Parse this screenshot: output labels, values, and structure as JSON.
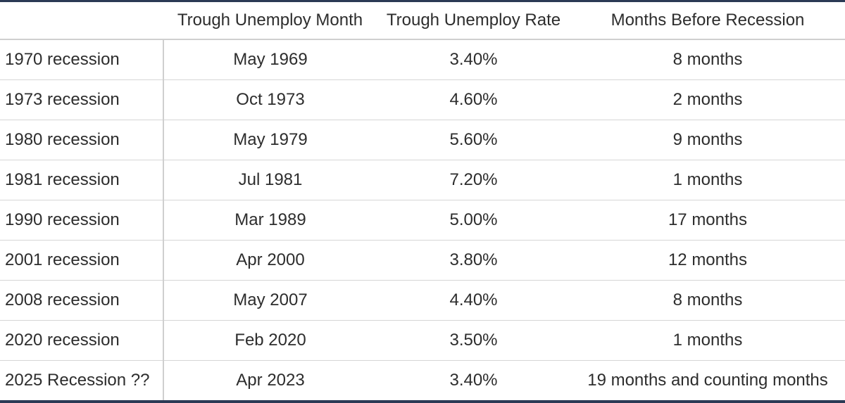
{
  "table": {
    "header": [
      "Trough Unemploy Month",
      "Trough Unemploy Rate",
      "Months Before Recession"
    ],
    "rows": [
      [
        "1970 recession",
        "May 1969",
        "3.40%",
        "8 months"
      ],
      [
        "1973 recession",
        "Oct 1973",
        "4.60%",
        "2 months"
      ],
      [
        "1980 recession",
        "May 1979",
        "5.60%",
        "9 months"
      ],
      [
        "1981 recession",
        "Jul 1981",
        "7.20%",
        "1 months"
      ],
      [
        "1990 recession",
        "Mar 1989",
        "5.00%",
        "17 months"
      ],
      [
        "2001 recession",
        "Apr 2000",
        "3.80%",
        "12 months"
      ],
      [
        "2008 recession",
        "May 2007",
        "4.40%",
        "8 months"
      ],
      [
        "2020 recession",
        "Feb 2020",
        "3.50%",
        "1 months"
      ],
      [
        "2025 Recession ??",
        "Apr 2023",
        "3.40%",
        "19 months and counting months"
      ]
    ]
  }
}
